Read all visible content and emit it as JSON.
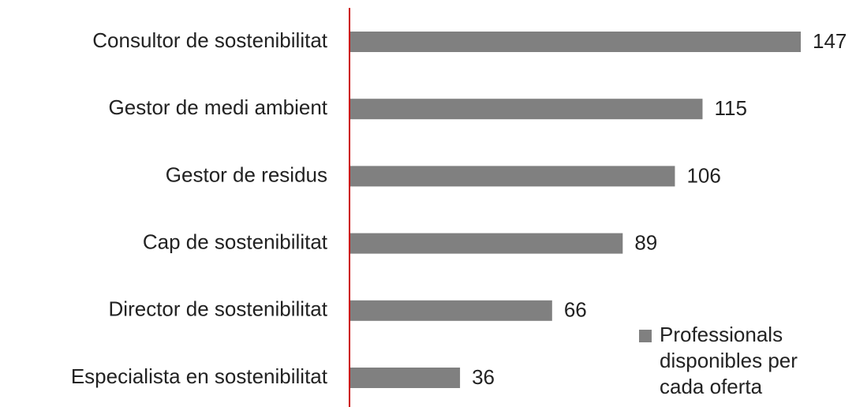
{
  "chart_data": {
    "type": "bar",
    "orientation": "horizontal",
    "categories": [
      "Consultor de sostenibilitat",
      "Gestor de medi ambient",
      "Gestor de residus",
      "Cap de sostenibilitat",
      "Director de sostenibilitat",
      "Especialista en sostenibilitat"
    ],
    "series": [
      {
        "name": "Professionals disponibles per cada oferta",
        "color": "#808080",
        "values": [
          147,
          115,
          106,
          89,
          66,
          36
        ]
      }
    ],
    "axis_color": "#cc0000",
    "legend": "lower right"
  }
}
